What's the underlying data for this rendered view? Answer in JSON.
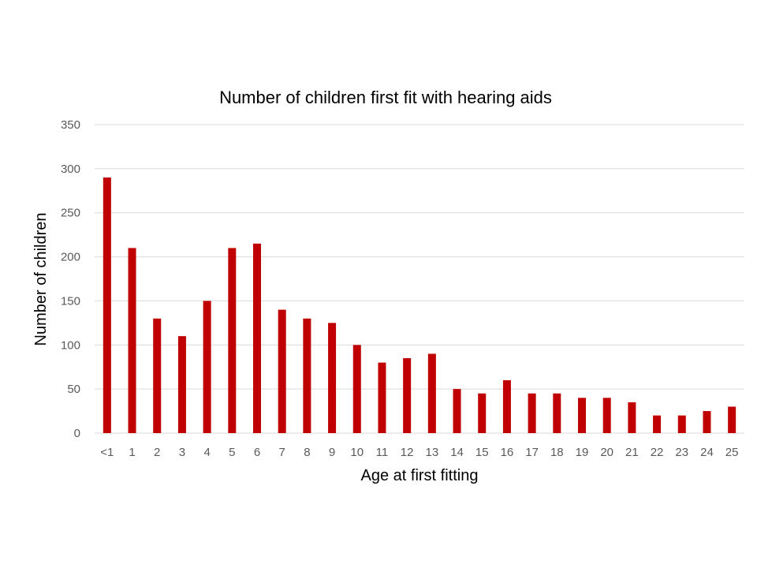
{
  "chart_data": {
    "type": "bar",
    "title": "Number of children first fit with hearing aids",
    "xlabel": "Age at first fitting",
    "ylabel": "Number of children",
    "categories": [
      "<1",
      "1",
      "2",
      "3",
      "4",
      "5",
      "6",
      "7",
      "8",
      "9",
      "10",
      "11",
      "12",
      "13",
      "14",
      "15",
      "16",
      "17",
      "18",
      "19",
      "20",
      "21",
      "22",
      "23",
      "24",
      "25"
    ],
    "values": [
      290,
      210,
      130,
      110,
      150,
      210,
      215,
      140,
      130,
      125,
      100,
      80,
      85,
      90,
      50,
      45,
      60,
      45,
      45,
      40,
      40,
      35,
      20,
      20,
      25,
      30
    ],
    "ylim": [
      0,
      350
    ],
    "yticks": [
      0,
      50,
      100,
      150,
      200,
      250,
      300,
      350
    ],
    "grid": true,
    "legend": "none",
    "bar_color": "#c00000"
  }
}
